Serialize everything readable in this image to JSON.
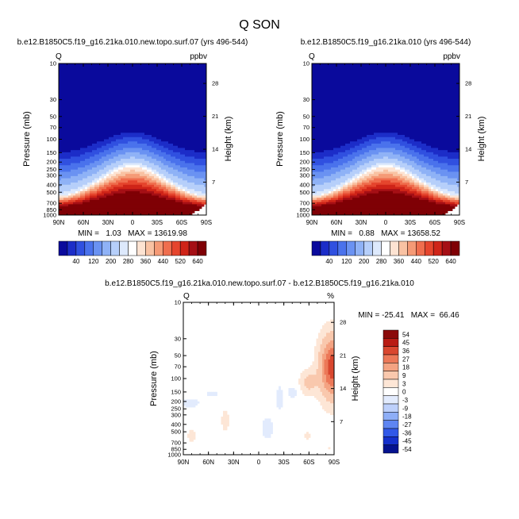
{
  "title": "Q SON",
  "colorbar_levels": [
    "40",
    "120",
    "200",
    "280",
    "360",
    "440",
    "520",
    "640"
  ],
  "colors": {
    "q": [
      "#0a0a9c",
      "#1c2dc8",
      "#3050e0",
      "#4a72ec",
      "#6a92f2",
      "#8fb2f6",
      "#b6cffa",
      "#dde9fc",
      "#ffffff",
      "#fde3d2",
      "#f9c2a3",
      "#f59a76",
      "#ef6e4e",
      "#e5452d",
      "#cf2418",
      "#a50f15",
      "#7f0005"
    ],
    "diff": [
      "#05128f",
      "#1530cc",
      "#3158e8",
      "#5e85f2",
      "#8eaef7",
      "#bdd0fb",
      "#e2ebfd",
      "#ffffff",
      "#fde6d6",
      "#f9c8ad",
      "#f4a382",
      "#ec7858",
      "#d9472f",
      "#b91c14",
      "#8b0a0a"
    ]
  },
  "chart_data": [
    {
      "type": "heatmap",
      "panel": "left",
      "subtitle": "b.e12.B1850C5.f19_g16.21ka.010.new.topo.surf.07 (yrs 496-544)",
      "left_string": "Q",
      "right_string": "ppbv",
      "ylabel": "Pressure (mb)",
      "ylabel_right": "Height (km)",
      "x_ticks": [
        "90N",
        "60N",
        "30N",
        "0",
        "30S",
        "60S",
        "90S"
      ],
      "y_ticks": [
        "10",
        "30",
        "50",
        "70",
        "100",
        "150",
        "200",
        "250",
        "300",
        "400",
        "500",
        "700",
        "850",
        "1000"
      ],
      "y_ticks_right": [
        "28",
        "21",
        "14",
        "7"
      ],
      "min_max": "MIN =   1.03   MAX = 13619.98",
      "min": 1.03,
      "max": 13619.98
    },
    {
      "type": "heatmap",
      "panel": "right",
      "subtitle": "b.e12.B1850C5.f19_g16.21ka.010 (yrs 496-544)",
      "left_string": "Q",
      "right_string": "ppbv",
      "ylabel": "Pressure (mb)",
      "ylabel_right": "Height (km)",
      "x_ticks": [
        "90N",
        "60N",
        "30N",
        "0",
        "30S",
        "60S",
        "90S"
      ],
      "y_ticks": [
        "10",
        "30",
        "50",
        "70",
        "100",
        "150",
        "200",
        "250",
        "300",
        "400",
        "500",
        "700",
        "850",
        "1000"
      ],
      "y_ticks_right": [
        "28",
        "21",
        "14",
        "7"
      ],
      "min_max": "MIN =   0.88   MAX = 13658.52",
      "min": 0.88,
      "max": 13658.52
    },
    {
      "type": "heatmap",
      "panel": "difference",
      "subtitle": "b.e12.B1850C5.f19_g16.21ka.010.new.topo.surf.07 - b.e12.B1850C5.f19_g16.21ka.010",
      "left_string": "Q",
      "right_string": "%",
      "ylabel": "Pressure (mb)",
      "ylabel_right": "Height (km)",
      "x_ticks": [
        "90N",
        "60N",
        "30N",
        "0",
        "30S",
        "60S",
        "90S"
      ],
      "y_ticks": [
        "10",
        "30",
        "50",
        "70",
        "100",
        "150",
        "200",
        "250",
        "300",
        "400",
        "500",
        "700",
        "850",
        "1000"
      ],
      "y_ticks_right": [
        "28",
        "21",
        "14",
        "7"
      ],
      "min_max": "MIN = -25.41   MAX =  66.46",
      "min": -25.41,
      "max": 66.46,
      "colorbar_levels": [
        "54",
        "45",
        "36",
        "27",
        "18",
        "9",
        "3",
        "0",
        "-3",
        "-9",
        "-18",
        "-27",
        "-36",
        "-45",
        "-54"
      ]
    }
  ]
}
